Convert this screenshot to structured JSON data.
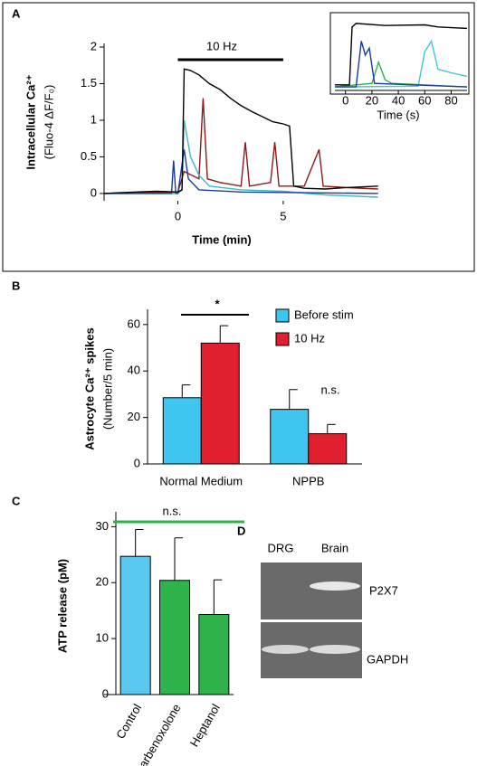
{
  "chart_data": [
    {
      "type": "line",
      "label": "A",
      "ylabel": [
        "Intracellular Ca²⁺",
        "(Fluo-4 ΔF/F₀)"
      ],
      "xlabel": "Time (min)",
      "annotations": [
        "10 Hz"
      ],
      "xlim": [
        -3.5,
        9.6
      ],
      "ylim": [
        -0.1,
        2
      ],
      "xticks": [
        0,
        5
      ],
      "yticks": [
        0,
        0.5,
        1,
        1.5,
        2
      ],
      "series": [
        {
          "color": "#8b1a1a",
          "x": [
            -3.5,
            0,
            0.3,
            1,
            1.2,
            1.4,
            2,
            3,
            3.2,
            3.4,
            4.4,
            4.6,
            4.8,
            6,
            6.7,
            6.9,
            8,
            9.5
          ],
          "values": [
            0,
            0.02,
            0.3,
            0.2,
            1.3,
            0.2,
            0.15,
            0.1,
            0.7,
            0.1,
            0.15,
            0.7,
            0.1,
            0.1,
            0.6,
            0.1,
            0.08,
            0.06
          ]
        },
        {
          "color": "#3cb8c8",
          "x": [
            -3.5,
            0,
            0.2,
            0.3,
            0.6,
            1,
            1.5,
            3,
            5,
            7,
            9.5
          ],
          "values": [
            0,
            0,
            0.05,
            1.0,
            0.5,
            0.25,
            0.1,
            0.05,
            0.03,
            -0.02,
            -0.05
          ]
        },
        {
          "color": "#1a3aa0",
          "x": [
            -3.5,
            -0.3,
            -0.2,
            -0.1,
            0,
            0.3,
            0.5,
            1,
            3,
            9.5
          ],
          "values": [
            0,
            0,
            0.45,
            0,
            0,
            0.6,
            0.2,
            0.05,
            0.02,
            0
          ]
        },
        {
          "color": "#000000",
          "x": [
            -3.5,
            -2,
            -1,
            0,
            0.2,
            0.3,
            0.6,
            1,
            1.5,
            2,
            2.5,
            3,
            3.5,
            4,
            4.5,
            5,
            5.3,
            5.5,
            6,
            7,
            8,
            9.5
          ],
          "values": [
            0,
            0.02,
            0.03,
            0.02,
            0.05,
            1.7,
            1.68,
            1.62,
            1.5,
            1.42,
            1.3,
            1.2,
            1.12,
            1.05,
            0.98,
            0.95,
            0.92,
            0.1,
            0.07,
            0.06,
            0.08,
            0.1
          ]
        }
      ]
    },
    {
      "type": "line",
      "xlabel": "Time (s)",
      "xlim": [
        -8,
        92
      ],
      "ylim": [
        0,
        1
      ],
      "xticks": [
        0,
        20,
        40,
        60,
        80
      ],
      "series": [
        {
          "color": "#2db34a",
          "x": [
            -8,
            20,
            25,
            30,
            35,
            92
          ],
          "values": [
            0.05,
            0.1,
            0.4,
            0.15,
            0.1,
            0.05
          ]
        },
        {
          "color": "#3cc8d8",
          "x": [
            -8,
            55,
            60,
            65,
            70,
            80,
            92
          ],
          "values": [
            0.05,
            0.06,
            0.55,
            0.7,
            0.3,
            0.25,
            0.2
          ]
        },
        {
          "color": "#1a3aa0",
          "x": [
            -8,
            8,
            12,
            15,
            18,
            22,
            92
          ],
          "values": [
            0.05,
            0.05,
            0.7,
            0.5,
            0.6,
            0.1,
            0.05
          ]
        },
        {
          "color": "#000000",
          "x": [
            -8,
            3,
            5,
            8,
            30,
            60,
            70,
            92
          ],
          "values": [
            0.08,
            0.08,
            0.9,
            0.95,
            0.92,
            0.93,
            0.9,
            0.88
          ]
        }
      ]
    },
    {
      "type": "bar",
      "label": "B",
      "ylabel": [
        "Astrocyte Ca²⁺ spikes",
        "(Number/5 min)"
      ],
      "annotations": [
        "*",
        "n.s."
      ],
      "categories": [
        "Normal Medium",
        "NPPB"
      ],
      "ylim": [
        0,
        65
      ],
      "yticks": [
        0,
        20,
        40,
        60
      ],
      "series": [
        {
          "name": "Before stim",
          "color": "#3ec6f0",
          "values": [
            28.5,
            23.5
          ],
          "errors": [
            5.5,
            8.5
          ]
        },
        {
          "name": "10 Hz",
          "color": "#e0202e",
          "values": [
            52,
            13
          ],
          "errors": [
            7.5,
            4
          ]
        }
      ]
    },
    {
      "type": "bar",
      "label": "C",
      "ylabel": [
        "ATP release (pM)"
      ],
      "annotations": [
        "n.s."
      ],
      "categories": [
        "Control",
        "Carbenoxolone",
        "Heptanol"
      ],
      "ylim": [
        0,
        32
      ],
      "yticks": [
        0,
        10,
        20,
        30
      ],
      "series": [
        {
          "colors": [
            "#5bc8f0",
            "#2db34a",
            "#2db34a"
          ],
          "values": [
            24.7,
            20.4,
            14.3
          ],
          "errors": [
            4.8,
            7.6,
            6.2
          ]
        }
      ]
    }
  ],
  "gel": {
    "label": "D",
    "columns": [
      "DRG",
      "Brain"
    ],
    "rows": [
      "P2X7",
      "GAPDH"
    ]
  }
}
